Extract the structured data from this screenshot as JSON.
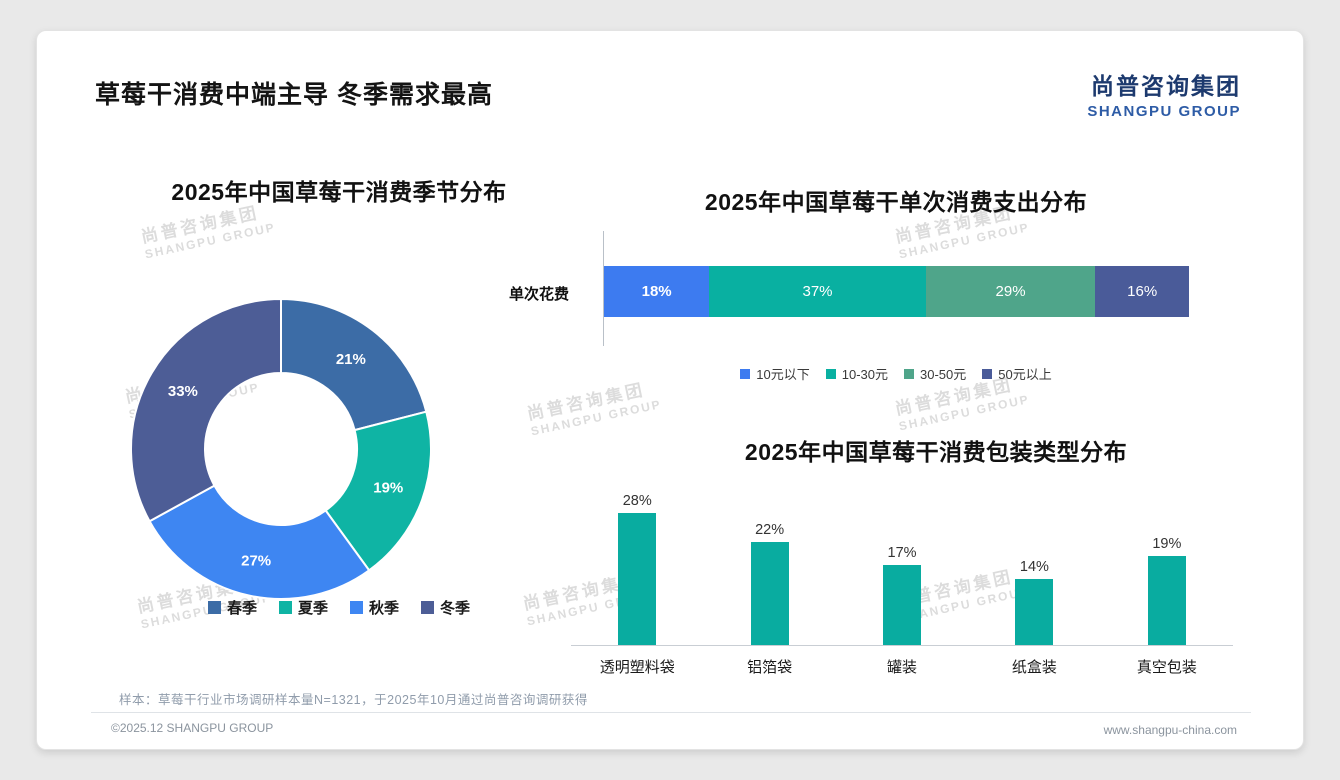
{
  "page": {
    "title": "草莓干消费中端主导 冬季需求最高",
    "logo_cn": "尚普咨询集团",
    "logo_en": "SHANGPU GROUP",
    "watermark_cn": "尚普咨询集团",
    "watermark_en": "SHANGPU GROUP",
    "footnote": "样本：草莓干行业市场调研样本量N=1321，于2025年10月通过尚普咨询调研获得",
    "copyright": "©2025.12 SHANGPU GROUP",
    "website": "www.shangpu-china.com"
  },
  "chart_data": [
    {
      "type": "pie",
      "title": "2025年中国草莓干消费季节分布",
      "categories": [
        "春季",
        "夏季",
        "秋季",
        "冬季"
      ],
      "values": [
        21,
        19,
        27,
        33
      ],
      "labels": [
        "21%",
        "19%",
        "27%",
        "33%"
      ],
      "colors": [
        "#3c6ca6",
        "#0fb4a4",
        "#3e86f2",
        "#4d5d96"
      ],
      "legend_position": "bottom",
      "donut": true
    },
    {
      "type": "bar",
      "subtype": "stacked-horizontal",
      "title": "2025年中国草莓干单次消费支出分布",
      "row_label": "单次花费",
      "categories": [
        "10元以下",
        "10-30元",
        "30-50元",
        "50元以上"
      ],
      "values": [
        18,
        37,
        29,
        16
      ],
      "labels": [
        "18%",
        "37%",
        "29%",
        "16%"
      ],
      "colors": [
        "#3d7bf0",
        "#09b0a1",
        "#4fa58a",
        "#4a5b99"
      ],
      "xlim": [
        0,
        100
      ],
      "legend_position": "bottom"
    },
    {
      "type": "bar",
      "title": "2025年中国草莓干消费包装类型分布",
      "categories": [
        "透明塑料袋",
        "铝箔袋",
        "罐装",
        "纸盒装",
        "真空包装"
      ],
      "values": [
        28,
        22,
        17,
        14,
        19
      ],
      "labels": [
        "28%",
        "22%",
        "17%",
        "14%",
        "19%"
      ],
      "color": "#09aca0",
      "ylim": [
        0,
        30
      ],
      "grid": false
    }
  ]
}
